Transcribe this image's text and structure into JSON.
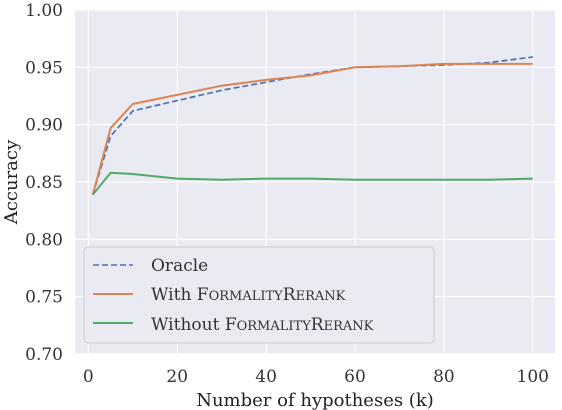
{
  "chart_data": {
    "type": "line",
    "xlabel": "Number of hypotheses (k)",
    "ylabel": "Accuracy",
    "xlim": [
      -3,
      105
    ],
    "ylim": [
      0.7,
      1.0
    ],
    "x_ticks": [
      0,
      20,
      40,
      60,
      80,
      100
    ],
    "y_ticks": [
      0.7,
      0.75,
      0.8,
      0.85,
      0.9,
      0.95,
      1.0
    ],
    "x_tick_labels": [
      "0",
      "20",
      "40",
      "60",
      "80",
      "100"
    ],
    "y_tick_labels": [
      "0.70",
      "0.75",
      "0.80",
      "0.85",
      "0.90",
      "0.95",
      "1.00"
    ],
    "grid": true,
    "legend_position": "lower-left",
    "series": [
      {
        "name": "Oracle",
        "color": "#4c72b0",
        "style": "dashed",
        "x": [
          1,
          5,
          10,
          20,
          30,
          40,
          50,
          60,
          70,
          80,
          90,
          100
        ],
        "y": [
          0.839,
          0.89,
          0.912,
          0.921,
          0.93,
          0.937,
          0.944,
          0.95,
          0.951,
          0.952,
          0.954,
          0.959
        ]
      },
      {
        "name": "With FormalityRerank",
        "legend_parts": [
          "With ",
          "F",
          "ORMALITY",
          "R",
          "ERANK"
        ],
        "color": "#dd8452",
        "style": "solid",
        "x": [
          1,
          5,
          10,
          20,
          30,
          40,
          50,
          60,
          70,
          80,
          90,
          100
        ],
        "y": [
          0.839,
          0.897,
          0.918,
          0.926,
          0.934,
          0.939,
          0.943,
          0.95,
          0.951,
          0.953,
          0.953,
          0.953
        ]
      },
      {
        "name": "Without FormalityRerank",
        "legend_parts": [
          "Without ",
          "F",
          "ORMALITY",
          "R",
          "ERANK"
        ],
        "color": "#55a868",
        "style": "solid",
        "x": [
          1,
          5,
          10,
          20,
          30,
          40,
          50,
          60,
          70,
          80,
          90,
          100
        ],
        "y": [
          0.839,
          0.858,
          0.857,
          0.853,
          0.852,
          0.853,
          0.853,
          0.852,
          0.852,
          0.852,
          0.852,
          0.853
        ]
      }
    ]
  }
}
